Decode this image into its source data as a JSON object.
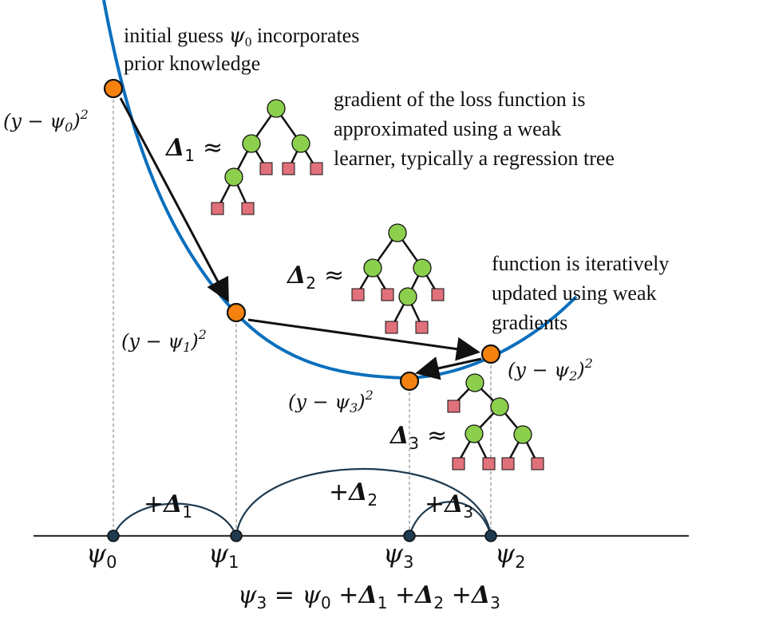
{
  "annotations": {
    "initial_line1": "initial guess",
    "initial_psi": "ψ",
    "initial_sub": "0",
    "initial_line1_tail": "incorporates",
    "initial_line2": "prior knowledge",
    "gradient_line1": "gradient of the loss function is",
    "gradient_line2": "approximated using a weak",
    "gradient_line3": "learner, typically a regression tree",
    "iterative_line1": "function is iteratively",
    "iterative_line2": "updated using weak",
    "iterative_line3": "gradients"
  },
  "loss_labels": [
    {
      "prefix": "(y − ψ",
      "sub": "0",
      "suffix": ")",
      "sup": "2"
    },
    {
      "prefix": "(y − ψ",
      "sub": "1",
      "suffix": ")",
      "sup": "2"
    },
    {
      "prefix": "(y − ψ",
      "sub": "2",
      "suffix": ")",
      "sup": "2"
    },
    {
      "prefix": "(y − ψ",
      "sub": "3",
      "suffix": ")",
      "sup": "2"
    }
  ],
  "delta_labels": [
    {
      "delta": "Δ",
      "sub": "1",
      "approx": "≈"
    },
    {
      "delta": "Δ",
      "sub": "2",
      "approx": "≈"
    },
    {
      "delta": "Δ",
      "sub": "3",
      "approx": "≈"
    }
  ],
  "axis_labels": [
    {
      "psi": "ψ",
      "sub": "0"
    },
    {
      "psi": "ψ",
      "sub": "1"
    },
    {
      "psi": "ψ",
      "sub": "3"
    },
    {
      "psi": "ψ",
      "sub": "2"
    }
  ],
  "arc_labels": [
    {
      "plus": "+",
      "delta": "Δ",
      "sub": "1"
    },
    {
      "plus": "+",
      "delta": "Δ",
      "sub": "2"
    },
    {
      "plus": "+",
      "delta": "Δ",
      "sub": "3"
    }
  ],
  "equation": {
    "lhs_psi": "ψ",
    "lhs_sub": "3",
    "eq": " = ",
    "psi0": "ψ",
    "psi0_sub": "0",
    "plus1": " +",
    "d1": "Δ",
    "d1_sub": "1",
    "plus2": " +",
    "d2": "Δ",
    "d2_sub": "2",
    "plus3": " +",
    "d3": "Δ",
    "d3_sub": "3"
  },
  "colors": {
    "curve": "#0a6fbd",
    "point_fill": "#f5820f",
    "axis_dot": "#1e3a4f",
    "tree_node": "#8ccf4d",
    "tree_leaf": "#e0707a"
  }
}
